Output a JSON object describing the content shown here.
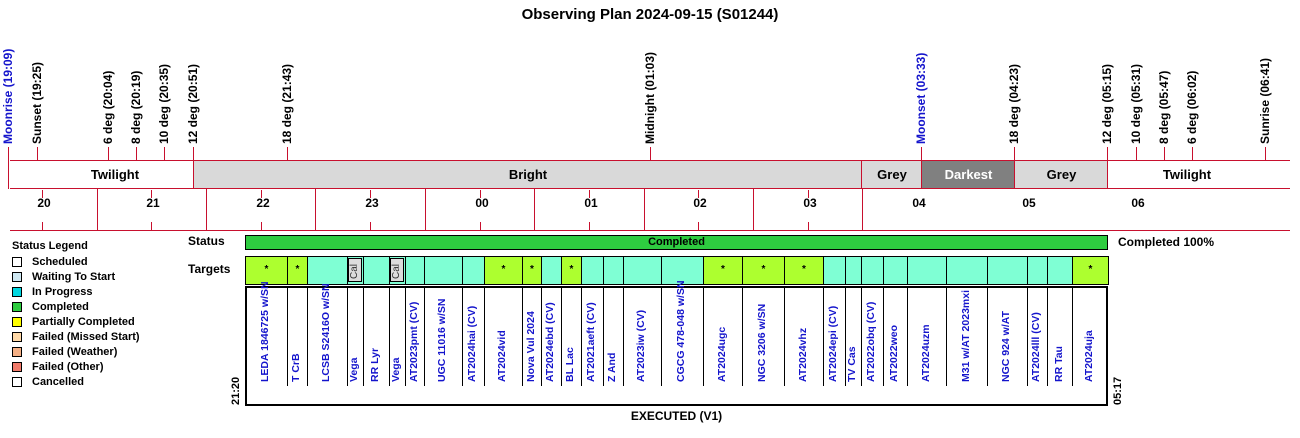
{
  "title": "Observing Plan 2024-09-15 (S01244)",
  "events": [
    {
      "label": "Moonrise (19:09)",
      "color": "#1414cc"
    },
    {
      "label": "Sunset (19:25)",
      "color": "#000000"
    },
    {
      "label": "6 deg (20:04)",
      "color": "#000000"
    },
    {
      "label": "8 deg (20:19)",
      "color": "#000000"
    },
    {
      "label": "10 deg (20:35)",
      "color": "#000000"
    },
    {
      "label": "12 deg (20:51)",
      "color": "#000000"
    },
    {
      "label": "18 deg (21:43)",
      "color": "#000000"
    },
    {
      "label": "Midnight (01:03)",
      "color": "#000000"
    },
    {
      "label": "Moonset (03:33)",
      "color": "#1414cc"
    },
    {
      "label": "18 deg (04:23)",
      "color": "#000000"
    },
    {
      "label": "12 deg (05:15)",
      "color": "#000000"
    },
    {
      "label": "10 deg (05:31)",
      "color": "#000000"
    },
    {
      "label": "8 deg (05:47)",
      "color": "#000000"
    },
    {
      "label": "6 deg (06:02)",
      "color": "#000000"
    },
    {
      "label": "Sunrise (06:41)",
      "color": "#000000"
    }
  ],
  "periods": [
    {
      "label": "Twilight"
    },
    {
      "label": "Bright"
    },
    {
      "label": "Grey"
    },
    {
      "label": "Darkest"
    },
    {
      "label": "Grey"
    },
    {
      "label": "Twilight"
    }
  ],
  "hours": [
    "20",
    "21",
    "22",
    "23",
    "00",
    "01",
    "02",
    "03",
    "04",
    "05",
    "06"
  ],
  "legend": {
    "title": "Status Legend",
    "items": [
      {
        "label": "Scheduled",
        "color": "#ffffff"
      },
      {
        "label": "Waiting To Start",
        "color": "#cfe8f2"
      },
      {
        "label": "In Progress",
        "color": "#00d7e0"
      },
      {
        "label": "Completed",
        "color": "#2ecc40"
      },
      {
        "label": "Partially Completed",
        "color": "#ffff00"
      },
      {
        "label": "Failed (Missed Start)",
        "color": "#ffd9a8"
      },
      {
        "label": "Failed (Weather)",
        "color": "#f5b085"
      },
      {
        "label": "Failed (Other)",
        "color": "#f07a6a"
      },
      {
        "label": "Cancelled",
        "color": "#ffffff"
      }
    ]
  },
  "status": {
    "label": "Status",
    "bar_text": "Completed",
    "summary": "Completed 100%"
  },
  "targets_label": "Targets",
  "cal_text": "Cal",
  "lime_marker": "*",
  "start_time": "21:20",
  "end_time": "05:17",
  "footer": "EXECUTED (V1)",
  "targets": [
    {
      "name": "LEDA 1846725 w/SN",
      "lime": true
    },
    {
      "name": "T CrB",
      "lime": true
    },
    {
      "name": "LCSB S2416O w/SN",
      "lime": false
    },
    {
      "name": "Vega",
      "lime": false,
      "cal": true
    },
    {
      "name": "RR Lyr",
      "lime": false
    },
    {
      "name": "Vega",
      "lime": false,
      "cal": true
    },
    {
      "name": "AT2023pmt (CV)",
      "lime": false
    },
    {
      "name": "UGC 11016 w/SN",
      "lime": false
    },
    {
      "name": "AT2024hai (CV)",
      "lime": false
    },
    {
      "name": "AT2024vid",
      "lime": true
    },
    {
      "name": "Nova Vul 2024",
      "lime": true
    },
    {
      "name": "AT2024ebd (CV)",
      "lime": false
    },
    {
      "name": "BL Lac",
      "lime": true
    },
    {
      "name": "AT2021aeft (CV)",
      "lime": false
    },
    {
      "name": "Z And",
      "lime": false
    },
    {
      "name": "AT2023iw (CV)",
      "lime": false
    },
    {
      "name": "CGCG 478-048 w/SN",
      "lime": false
    },
    {
      "name": "AT2024ugc",
      "lime": true
    },
    {
      "name": "NGC 3206 w/SN",
      "lime": true
    },
    {
      "name": "AT2024vhz",
      "lime": true
    },
    {
      "name": "AT2024epi (CV)",
      "lime": false
    },
    {
      "name": "TV Cas",
      "lime": false
    },
    {
      "name": "AT2022obq (CV)",
      "lime": false
    },
    {
      "name": "AT2022weo",
      "lime": false
    },
    {
      "name": "AT2024uzm",
      "lime": false
    },
    {
      "name": "M31 w/AT 2023mxi",
      "lime": false
    },
    {
      "name": "NGC 924 w/AT",
      "lime": false
    },
    {
      "name": "AT2024lll (CV)",
      "lime": false
    },
    {
      "name": "RR Tau",
      "lime": false
    },
    {
      "name": "AT2024uja",
      "lime": true
    }
  ]
}
